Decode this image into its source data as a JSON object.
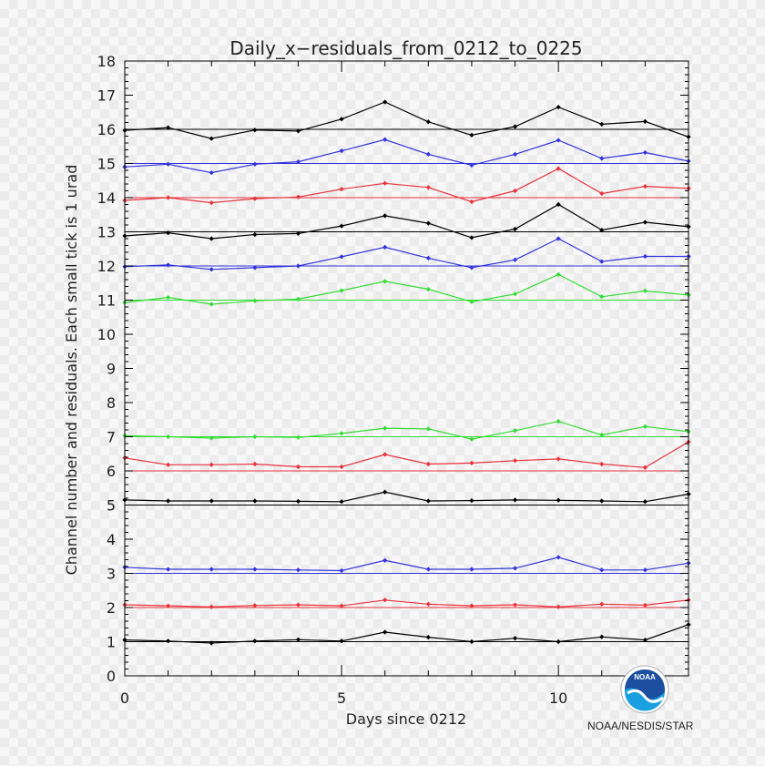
{
  "chart_data": {
    "type": "line",
    "title": "Daily_x−residuals_from_0212_to_0225",
    "xlabel": "Days since 0212",
    "ylabel": "Channel number and residuals. Each small tick is 1 urad",
    "xlim": [
      0,
      13
    ],
    "ylim": [
      0,
      18
    ],
    "xticks": [
      0,
      5,
      10
    ],
    "yticks": [
      0,
      1,
      2,
      3,
      4,
      5,
      6,
      7,
      8,
      9,
      10,
      11,
      12,
      13,
      14,
      15,
      16,
      17,
      18
    ],
    "x": [
      0,
      1,
      2,
      3,
      4,
      5,
      6,
      7,
      8,
      9,
      10,
      11,
      12,
      13
    ],
    "series": [
      {
        "baseline": 1,
        "color": "#000000",
        "values": [
          1.05,
          1.02,
          0.96,
          1.02,
          1.06,
          1.02,
          1.28,
          1.13,
          1.0,
          1.1,
          1.0,
          1.14,
          1.05,
          1.5
        ]
      },
      {
        "baseline": 2,
        "color": "#e8323c",
        "values": [
          2.08,
          2.05,
          2.02,
          2.06,
          2.08,
          2.05,
          2.22,
          2.1,
          2.05,
          2.08,
          2.02,
          2.1,
          2.07,
          2.22
        ]
      },
      {
        "baseline": 3,
        "color": "#3333dd",
        "values": [
          3.18,
          3.12,
          3.12,
          3.12,
          3.1,
          3.08,
          3.38,
          3.12,
          3.12,
          3.15,
          3.47,
          3.1,
          3.1,
          3.3
        ]
      },
      {
        "baseline": 5,
        "color": "#000000",
        "values": [
          5.15,
          5.12,
          5.12,
          5.12,
          5.11,
          5.1,
          5.38,
          5.12,
          5.13,
          5.15,
          5.14,
          5.12,
          5.1,
          5.32
        ]
      },
      {
        "baseline": 6,
        "color": "#e8323c",
        "values": [
          6.38,
          6.18,
          6.18,
          6.2,
          6.12,
          6.12,
          6.48,
          6.2,
          6.23,
          6.3,
          6.35,
          6.2,
          6.1,
          6.85
        ]
      },
      {
        "baseline": 7,
        "color": "#33dd33",
        "values": [
          7.03,
          7.0,
          6.96,
          7.0,
          6.98,
          7.1,
          7.25,
          7.23,
          6.93,
          7.18,
          7.45,
          7.05,
          7.3,
          7.15
        ]
      },
      {
        "baseline": 11,
        "color": "#33dd33",
        "values": [
          10.93,
          11.08,
          10.88,
          10.98,
          11.03,
          11.28,
          11.55,
          11.32,
          10.95,
          11.18,
          11.75,
          11.1,
          11.27,
          11.15
        ]
      },
      {
        "baseline": 12,
        "color": "#3333dd",
        "values": [
          11.98,
          12.03,
          11.9,
          11.95,
          12.0,
          12.27,
          12.55,
          12.23,
          11.95,
          12.18,
          12.8,
          12.13,
          12.28,
          12.28
        ]
      },
      {
        "baseline": 13,
        "color": "#000000",
        "values": [
          12.88,
          12.97,
          12.8,
          12.92,
          12.95,
          13.17,
          13.47,
          13.25,
          12.83,
          13.08,
          13.8,
          13.05,
          13.28,
          13.15
        ]
      },
      {
        "baseline": 14,
        "color": "#e8323c",
        "values": [
          13.92,
          14.0,
          13.85,
          13.97,
          14.02,
          14.25,
          14.42,
          14.3,
          13.88,
          14.2,
          14.85,
          14.12,
          14.33,
          14.27
        ]
      },
      {
        "baseline": 15,
        "color": "#3333dd",
        "values": [
          14.9,
          14.98,
          14.73,
          14.98,
          15.05,
          15.37,
          15.7,
          15.27,
          14.95,
          15.27,
          15.68,
          15.15,
          15.32,
          15.07
        ]
      },
      {
        "baseline": 16,
        "color": "#000000",
        "values": [
          15.97,
          16.05,
          15.73,
          15.98,
          15.95,
          16.3,
          16.8,
          16.22,
          15.83,
          16.08,
          16.65,
          16.15,
          16.23,
          15.78
        ]
      }
    ]
  },
  "logo": {
    "symbol_label": "NOAA",
    "caption": "NOAA/NESDIS/STAR",
    "colors": {
      "outer": "#ffffff",
      "upper": "#1c4fa0",
      "lower": "#1aa0e0"
    }
  }
}
